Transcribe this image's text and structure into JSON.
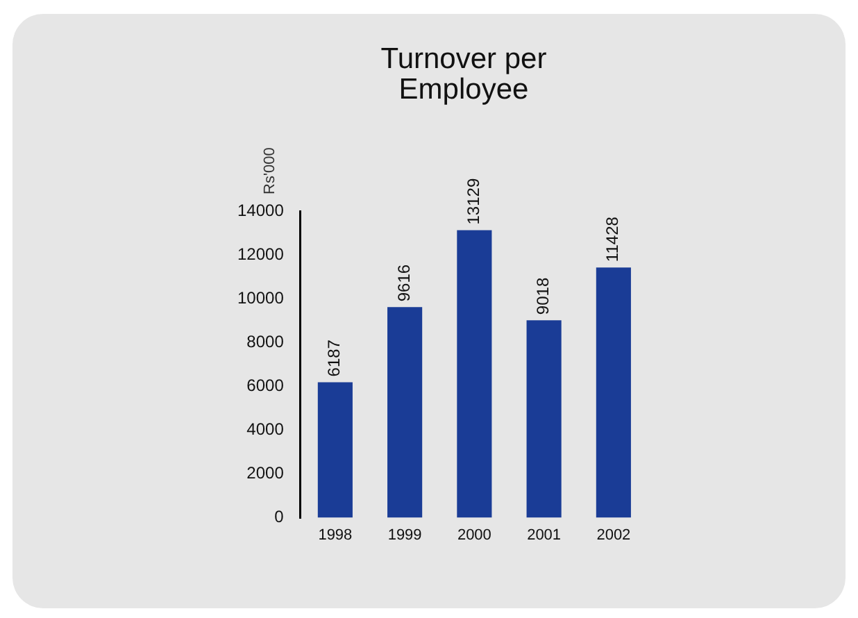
{
  "chart_data": {
    "type": "bar",
    "title": "Turnover per Employee",
    "ylabel": "Rs'000",
    "categories": [
      "1998",
      "1999",
      "2000",
      "2001",
      "2002"
    ],
    "values": [
      6187,
      9616,
      13129,
      9018,
      11428
    ],
    "color": "#1a3c96",
    "ylim": [
      0,
      14000
    ],
    "yticks": [
      0,
      2000,
      4000,
      6000,
      8000,
      10000,
      12000,
      14000
    ],
    "grid": false,
    "legend": false,
    "data_labels": true
  }
}
